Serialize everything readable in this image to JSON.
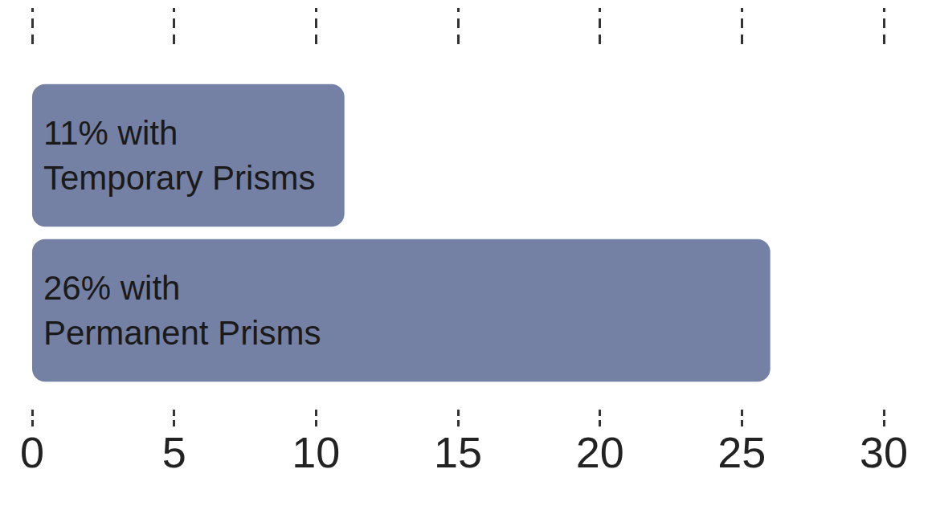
{
  "chart_data": {
    "type": "bar",
    "orientation": "horizontal",
    "categories": [
      null,
      null
    ],
    "values": [
      11,
      26
    ],
    "value_labels": [
      "11% with\nTemporary Prisms",
      "26% with\nPermanent Prisms"
    ],
    "data_labels": true,
    "color": "#7580a5",
    "xlim": [
      0,
      30
    ],
    "xticks": [
      0,
      5,
      10,
      15,
      20,
      25,
      30
    ],
    "grid": false,
    "tick_labels": "x"
  }
}
